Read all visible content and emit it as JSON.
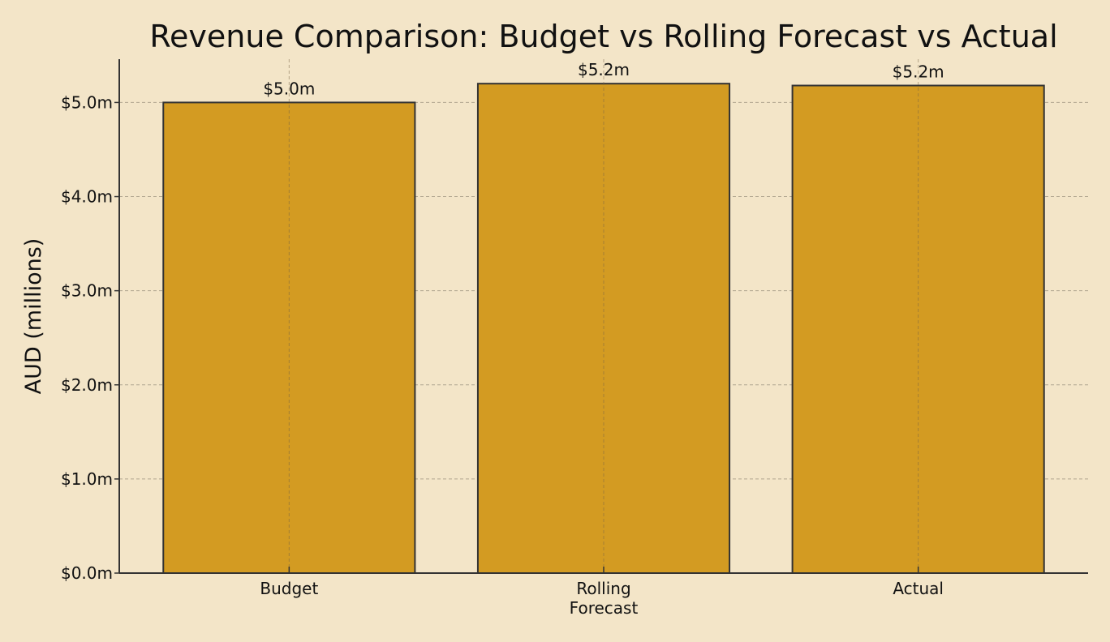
{
  "chart_data": {
    "type": "bar",
    "title": "Revenue Comparison: Budget vs Rolling Forecast vs Actual",
    "xlabel": "",
    "ylabel": "AUD (millions)",
    "categories": [
      "Budget",
      "Rolling\nForecast",
      "Actual"
    ],
    "values": [
      5.0,
      5.2,
      5.18
    ],
    "data_labels": [
      "$5.0m",
      "$5.2m",
      "$5.2m"
    ],
    "yticks": [
      0,
      1,
      2,
      3,
      4,
      5
    ],
    "ytick_labels": [
      "$0.0m",
      "$1.0m",
      "$2.0m",
      "$3.0m",
      "$4.0m",
      "$5.0m"
    ],
    "ylim": [
      0,
      5.46
    ],
    "grid": true,
    "colors": {
      "bar": "#d39b22",
      "edge": "#333333",
      "background": "#f3e5c8",
      "grid": "#b0a58f"
    }
  }
}
